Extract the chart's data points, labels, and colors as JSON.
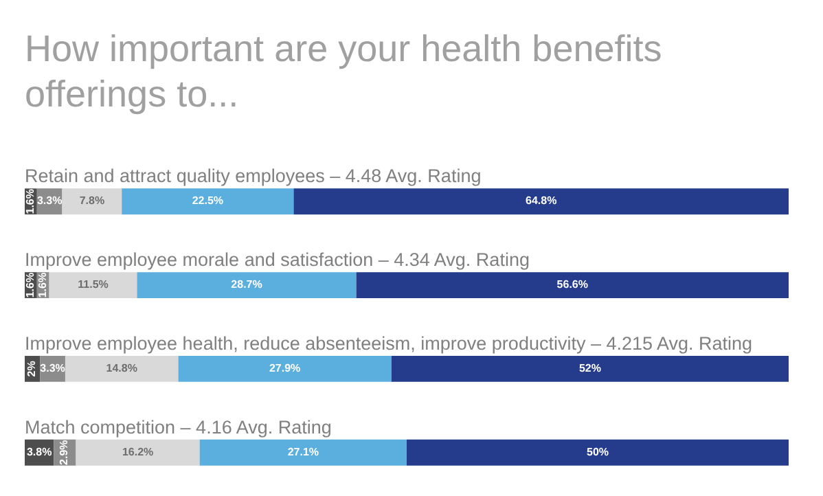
{
  "chart_data": {
    "type": "bar",
    "orientation": "horizontal",
    "stacked": true,
    "title": "How important are your health benefits offerings to...",
    "categories": [
      "Retain and attract quality employees – 4.48 Avg. Rating",
      "Improve employee morale and satisfaction – 4.34 Avg. Rating",
      "Improve employee health, reduce absenteeism, improve productivity – 4.215 Avg. Rating",
      "Match competition – 4.16 Avg. Rating"
    ],
    "series": [
      {
        "color": "#4d4d4d",
        "values": [
          1.6,
          1.6,
          2,
          3.8
        ],
        "value_labels": [
          "1.6%",
          "1.6%",
          "2%",
          "3.8%"
        ]
      },
      {
        "color": "#8c8c8c",
        "values": [
          3.3,
          1.6,
          3.3,
          2.9
        ],
        "value_labels": [
          "3.3%",
          "1.6%",
          "3.3%",
          "2.9%"
        ]
      },
      {
        "color": "#d9d9d9",
        "values": [
          7.8,
          11.5,
          14.8,
          16.2
        ],
        "value_labels": [
          "7.8%",
          "11.5%",
          "14.8%",
          "16.2%"
        ]
      },
      {
        "color": "#5aafdf",
        "values": [
          22.5,
          28.7,
          27.9,
          27.1
        ],
        "value_labels": [
          "22.5%",
          "28.7%",
          "27.9%",
          "27.1%"
        ]
      },
      {
        "color": "#253c8c",
        "values": [
          64.8,
          56.6,
          52,
          50
        ],
        "value_labels": [
          "64.8%",
          "56.6%",
          "52%",
          "50%"
        ]
      }
    ],
    "xlim": [
      0,
      100
    ],
    "tick_labels": false,
    "legend": false
  }
}
